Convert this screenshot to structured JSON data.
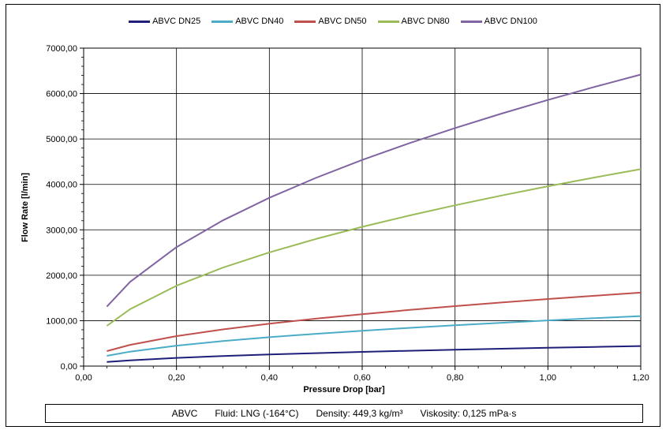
{
  "chart_data": {
    "type": "line",
    "title": "",
    "xlabel": "Pressure Drop  [bar]",
    "ylabel": "Flow Rate  [l/min]",
    "xlim": [
      0,
      1.2
    ],
    "ylim": [
      0,
      7000
    ],
    "x_ticks": [
      "0,00",
      "0,20",
      "0,40",
      "0,60",
      "0,80",
      "1,00",
      "1,20"
    ],
    "y_ticks": [
      "0,00",
      "1000,00",
      "2000,00",
      "3000,00",
      "4000,00",
      "5000,00",
      "6000,00",
      "7000,00"
    ],
    "grid": true,
    "legend_position": "top",
    "x": [
      0.05,
      0.1,
      0.2,
      0.3,
      0.4,
      0.5,
      0.6,
      0.7,
      0.8,
      0.9,
      1.0,
      1.1,
      1.2
    ],
    "series": [
      {
        "name": "ABVC DN25",
        "color": "#1f1f7a",
        "values": [
          90,
          127,
          180,
          221,
          255,
          285,
          312,
          337,
          360,
          382,
          403,
          422,
          441
        ]
      },
      {
        "name": "ABVC DN40",
        "color": "#4aacc6",
        "values": [
          225,
          318,
          450,
          551,
          636,
          711,
          779,
          841,
          899,
          954,
          1005,
          1054,
          1101
        ]
      },
      {
        "name": "ABVC DN50",
        "color": "#c0504d",
        "values": [
          330,
          467,
          660,
          808,
          933,
          1044,
          1143,
          1235,
          1320,
          1400,
          1476,
          1548,
          1617
        ]
      },
      {
        "name": "ABVC DN80",
        "color": "#9bbb59",
        "values": [
          885,
          1252,
          1770,
          2168,
          2503,
          2799,
          3066,
          3311,
          3540,
          3755,
          3958,
          4151,
          4336
        ]
      },
      {
        "name": "ABVC DN100",
        "color": "#8064a2",
        "values": [
          1310,
          1853,
          2620,
          3209,
          3705,
          4142,
          4538,
          4901,
          5240,
          5558,
          5858,
          6145,
          6418
        ]
      }
    ]
  },
  "footer": {
    "product": "ABVC",
    "fluid": "Fluid: LNG (-164°C)",
    "density": "Density: 449,3 kg/m³",
    "viscosity": "Viskosity: 0,125 mPa·s"
  }
}
